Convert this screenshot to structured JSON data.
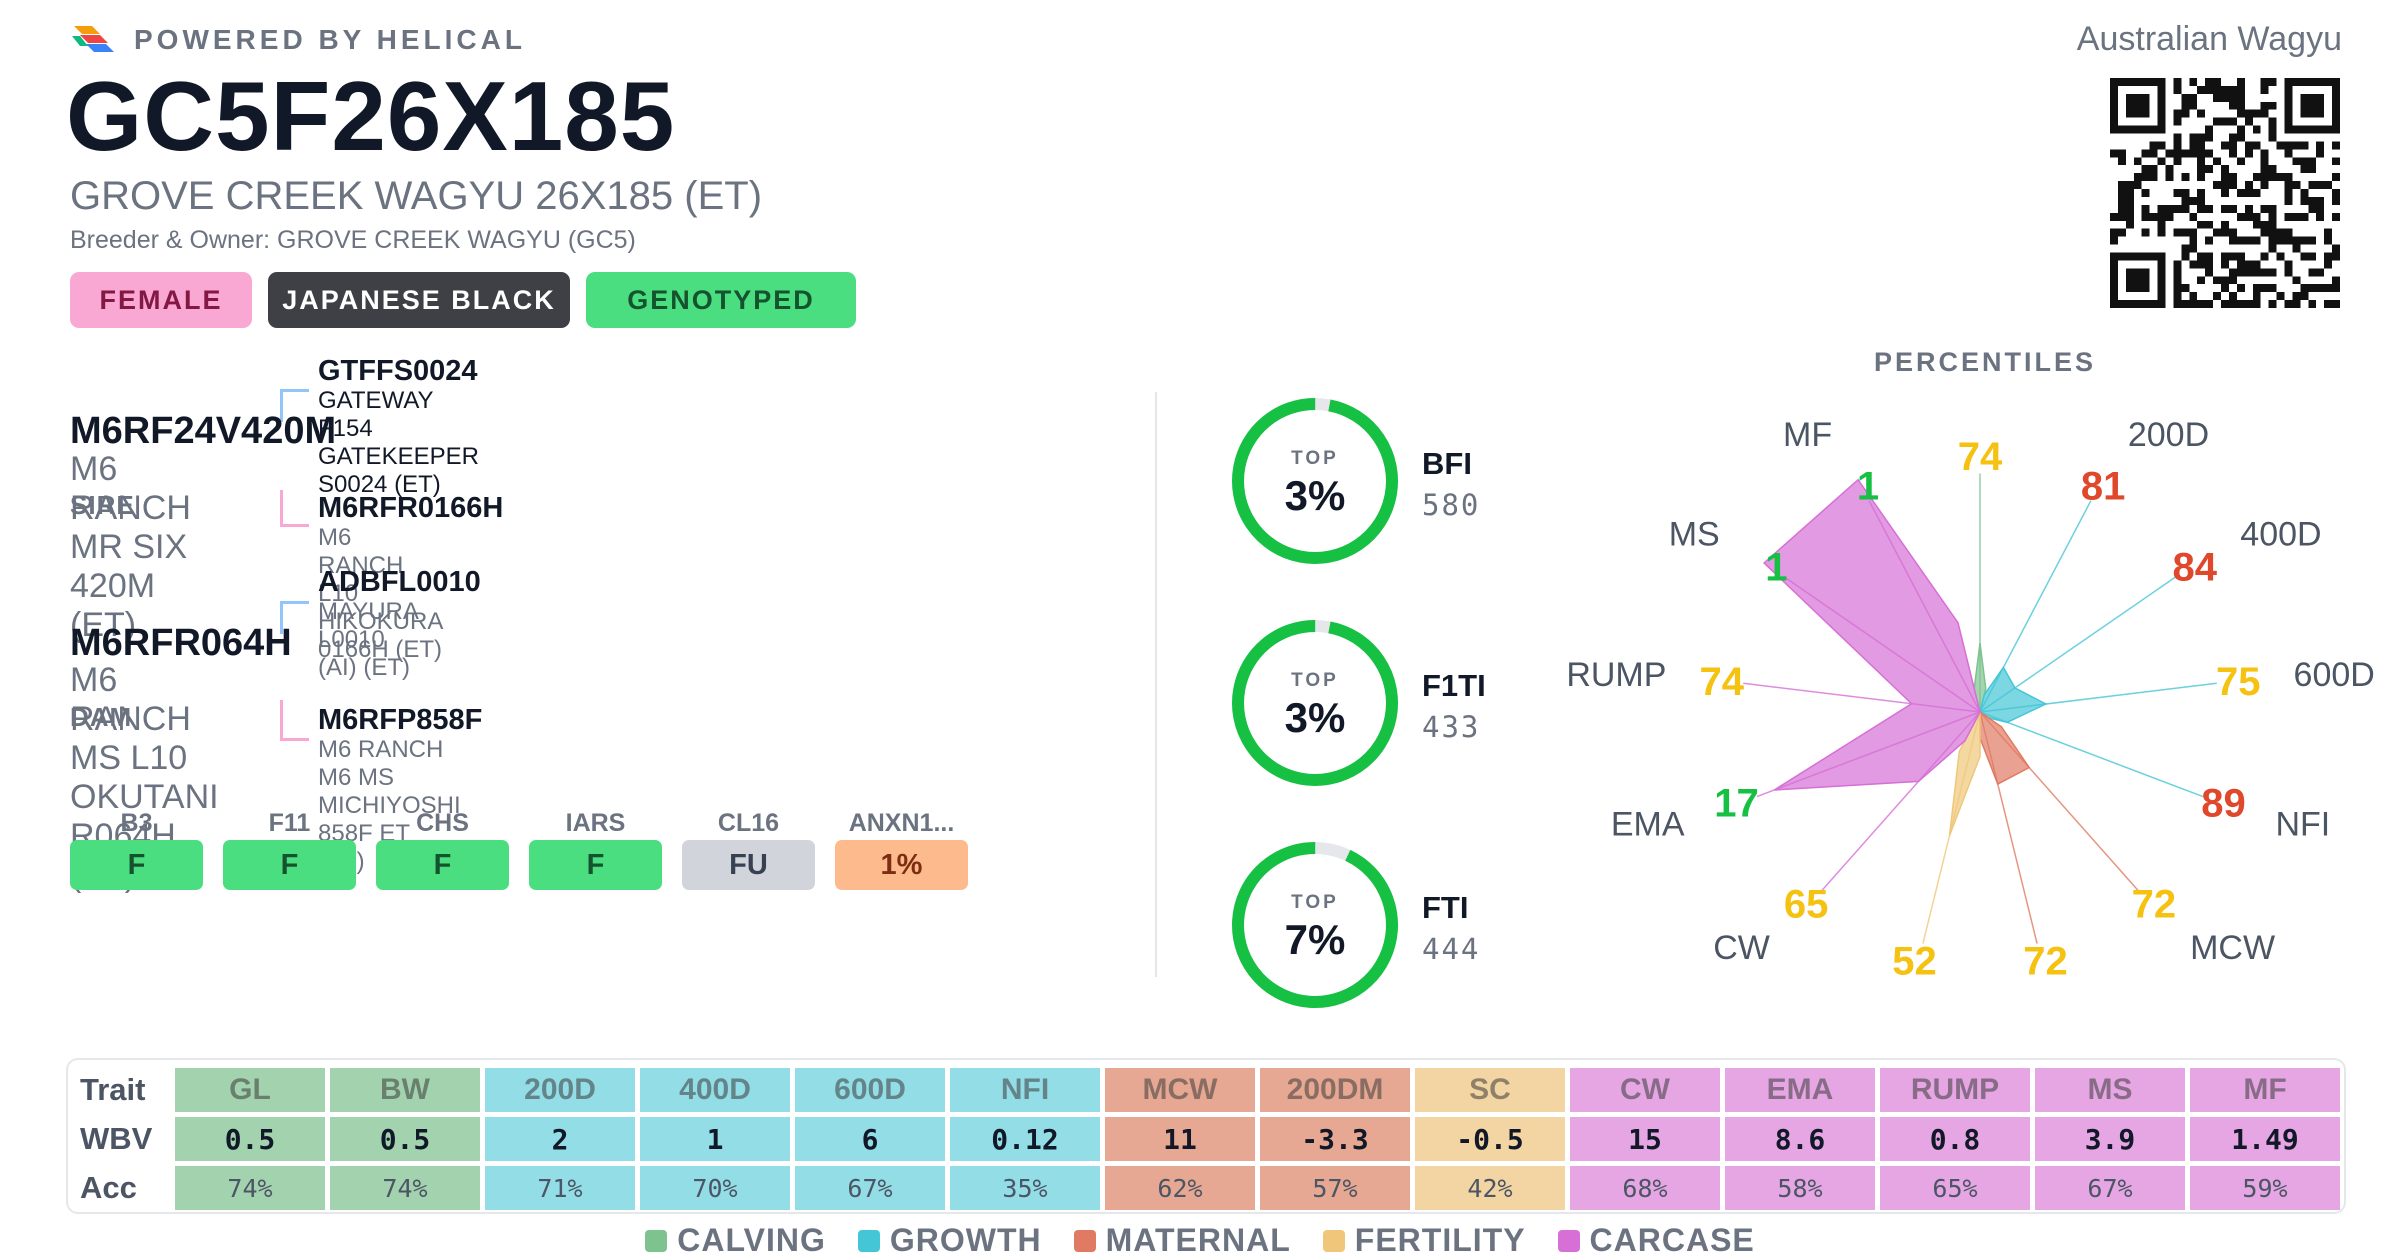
{
  "header": {
    "powered_by": "POWERED BY HELICAL",
    "animal_id": "GC5F26X185",
    "animal_name": "GROVE CREEK WAGYU 26X185 (ET)",
    "breeder_owner": "Breeder & Owner: GROVE CREEK WAGYU (GC5)",
    "breed_society": "Australian Wagyu",
    "badges": [
      {
        "label": "FEMALE",
        "bg": "#f9a8d4",
        "fg": "#831843"
      },
      {
        "label": "JAPANESE BLACK",
        "bg": "#3f3f46",
        "fg": "#ffffff"
      },
      {
        "label": "GENOTYPED",
        "bg": "#4ade80",
        "fg": "#14532d"
      }
    ]
  },
  "pedigree": {
    "sire": {
      "id": "M6RF24V420M",
      "name": "M6 RANCH MR SIX 420M (ET)",
      "role": "SIRE",
      "sire": {
        "id": "GTFFS0024",
        "name": "GATEWAY F154 GATEKEEPER S0024 (ET)"
      },
      "dam": {
        "id": "M6RFR0166H",
        "name": "M6 RANCH L10 HIKOKURA 0166H (ET)"
      }
    },
    "dam": {
      "id": "M6RFR064H",
      "name": "M6 RANCH MS L10 OKUTANI R064H (ET)",
      "role": "DAM",
      "sire": {
        "id": "ADBFL0010",
        "name": "MAYURA L0010 (AI) (ET)"
      },
      "dam": {
        "id": "M6RFP858F",
        "name": "M6 RANCH M6 MS MICHIYOSHI 858F ET (ET)"
      }
    }
  },
  "genetic_tests": [
    {
      "code": "B3",
      "value": "F",
      "bg": "#4ade80",
      "fg": "#14532d"
    },
    {
      "code": "F11",
      "value": "F",
      "bg": "#4ade80",
      "fg": "#14532d"
    },
    {
      "code": "CHS",
      "value": "F",
      "bg": "#4ade80",
      "fg": "#14532d"
    },
    {
      "code": "IARS",
      "value": "F",
      "bg": "#4ade80",
      "fg": "#14532d"
    },
    {
      "code": "CL16",
      "value": "FU",
      "bg": "#d1d5db",
      "fg": "#374151"
    },
    {
      "code": "ANXN1...",
      "value": "1%",
      "bg": "#fdba8c",
      "fg": "#7c2d12"
    }
  ],
  "indexes": [
    {
      "name": "BFI",
      "value": "580",
      "top_label": "TOP",
      "top_pct": "3%",
      "percentile": 3
    },
    {
      "name": "F1TI",
      "value": "433",
      "top_label": "TOP",
      "top_pct": "3%",
      "percentile": 3
    },
    {
      "name": "FTI",
      "value": "444",
      "top_label": "TOP",
      "top_pct": "7%",
      "percentile": 7
    }
  ],
  "ring_colors": {
    "fill": "#16c043",
    "track": "#e5e7eb"
  },
  "percentiles": {
    "title": "PERCENTILES",
    "traits": [
      {
        "trait": "GL",
        "pct": 74,
        "group": "calving"
      },
      {
        "trait": "200D",
        "pct": 81,
        "group": "growth"
      },
      {
        "trait": "400D",
        "pct": 84,
        "group": "growth"
      },
      {
        "trait": "600D",
        "pct": 75,
        "group": "growth"
      },
      {
        "trait": "NFI",
        "pct": 89,
        "group": "growth"
      },
      {
        "trait": "MCW",
        "pct": 72,
        "group": "maternal"
      },
      {
        "trait": "200DM",
        "pct": 72,
        "group": "maternal"
      },
      {
        "trait": "SC",
        "pct": 52,
        "group": "fertility"
      },
      {
        "trait": "CW",
        "pct": 65,
        "group": "carcase"
      },
      {
        "trait": "EMA",
        "pct": 17,
        "group": "carcase"
      },
      {
        "trait": "RUMP",
        "pct": 74,
        "group": "carcase"
      },
      {
        "trait": "MS",
        "pct": 1,
        "group": "carcase"
      },
      {
        "trait": "MF",
        "pct": 1,
        "group": "carcase"
      }
    ],
    "value_colors": {
      "top": "#16c043",
      "mid": "#f5c211",
      "low": "#e0482c"
    }
  },
  "groups": {
    "calving": {
      "label": "CALVING",
      "color": "#7cc38f",
      "cell": "#a3d3ae"
    },
    "growth": {
      "label": "GROWTH",
      "color": "#45c6d6",
      "cell": "#92dde6"
    },
    "maternal": {
      "label": "MATERNAL",
      "color": "#e07a62",
      "cell": "#e7a893"
    },
    "fertility": {
      "label": "FERTILITY",
      "color": "#f0c77a",
      "cell": "#f2d5a2"
    },
    "carcase": {
      "label": "CARCASE",
      "color": "#d66fd6",
      "cell": "#e5a6e3"
    }
  },
  "table": {
    "row_labels": [
      "Trait",
      "WBV",
      "Acc"
    ],
    "columns": [
      {
        "trait": "GL",
        "wbv": "0.5",
        "acc": "74%",
        "group": "calving"
      },
      {
        "trait": "BW",
        "wbv": "0.5",
        "acc": "74%",
        "group": "calving"
      },
      {
        "trait": "200D",
        "wbv": "2",
        "acc": "71%",
        "group": "growth"
      },
      {
        "trait": "400D",
        "wbv": "1",
        "acc": "70%",
        "group": "growth"
      },
      {
        "trait": "600D",
        "wbv": "6",
        "acc": "67%",
        "group": "growth"
      },
      {
        "trait": "NFI",
        "wbv": "0.12",
        "acc": "35%",
        "group": "growth"
      },
      {
        "trait": "MCW",
        "wbv": "11",
        "acc": "62%",
        "group": "maternal"
      },
      {
        "trait": "200DM",
        "wbv": "-3.3",
        "acc": "57%",
        "group": "maternal"
      },
      {
        "trait": "SC",
        "wbv": "-0.5",
        "acc": "42%",
        "group": "fertility"
      },
      {
        "trait": "CW",
        "wbv": "15",
        "acc": "68%",
        "group": "carcase"
      },
      {
        "trait": "EMA",
        "wbv": "8.6",
        "acc": "58%",
        "group": "carcase"
      },
      {
        "trait": "RUMP",
        "wbv": "0.8",
        "acc": "65%",
        "group": "carcase"
      },
      {
        "trait": "MS",
        "wbv": "3.9",
        "acc": "67%",
        "group": "carcase"
      },
      {
        "trait": "MF",
        "wbv": "1.49",
        "acc": "59%",
        "group": "carcase"
      }
    ]
  },
  "legend": [
    "calving",
    "growth",
    "maternal",
    "fertility",
    "carcase"
  ],
  "icons": {
    "logo": "helical-logo-icon",
    "qr": "qr-code-icon"
  }
}
